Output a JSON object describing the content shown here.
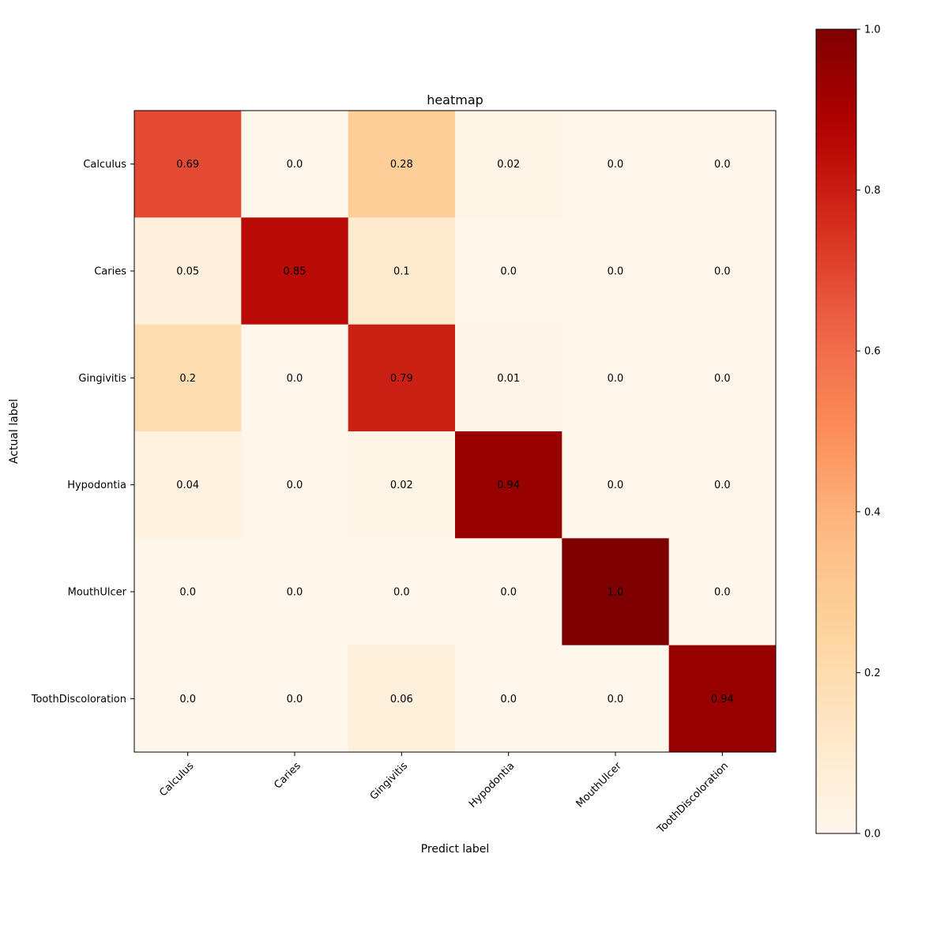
{
  "chart_data": {
    "type": "heatmap",
    "title": "heatmap",
    "xlabel": "Predict label",
    "ylabel": "Actual label",
    "x_categories": [
      "Calculus",
      "Caries",
      "Gingivitis",
      "Hypodontia",
      "MouthUlcer",
      "ToothDiscoloration"
    ],
    "y_categories": [
      "Calculus",
      "Caries",
      "Gingivitis",
      "Hypodontia",
      "MouthUlcer",
      "ToothDiscoloration"
    ],
    "values": [
      [
        0.69,
        0.0,
        0.28,
        0.02,
        0.0,
        0.0
      ],
      [
        0.05,
        0.85,
        0.1,
        0.0,
        0.0,
        0.0
      ],
      [
        0.2,
        0.0,
        0.79,
        0.01,
        0.0,
        0.0
      ],
      [
        0.04,
        0.0,
        0.02,
        0.94,
        0.0,
        0.0
      ],
      [
        0.0,
        0.0,
        0.0,
        0.0,
        1.0,
        0.0
      ],
      [
        0.0,
        0.0,
        0.06,
        0.0,
        0.0,
        0.94
      ]
    ],
    "cell_labels": [
      [
        "0.69",
        "0.0",
        "0.28",
        "0.02",
        "0.0",
        "0.0"
      ],
      [
        "0.05",
        "0.85",
        "0.1",
        "0.0",
        "0.0",
        "0.0"
      ],
      [
        "0.2",
        "0.0",
        "0.79",
        "0.01",
        "0.0",
        "0.0"
      ],
      [
        "0.04",
        "0.0",
        "0.02",
        "0.94",
        "0.0",
        "0.0"
      ],
      [
        "0.0",
        "0.0",
        "0.0",
        "0.0",
        "1.0",
        "0.0"
      ],
      [
        "0.0",
        "0.0",
        "0.06",
        "0.0",
        "0.0",
        "0.94"
      ]
    ],
    "colormap": "OrRd",
    "colorbar": {
      "range": [
        0.0,
        1.0
      ],
      "ticks": [
        "0.0",
        "0.2",
        "0.4",
        "0.6",
        "0.8",
        "1.0"
      ]
    },
    "legend": "none",
    "grid": false
  }
}
